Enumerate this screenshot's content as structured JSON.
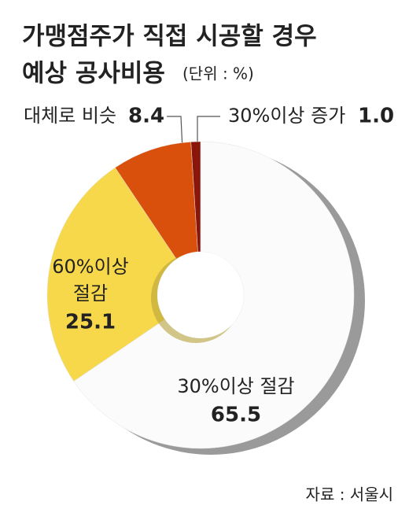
{
  "chart_data": {
    "type": "donut",
    "title": [
      "가맹점주가 직접 시공할 경우",
      "예상 공사비용"
    ],
    "subtitle": "(단위 : %)",
    "categories": [
      [
        "30%이상 절감"
      ],
      [
        "60%이상",
        "절감"
      ],
      [
        "대체로 비슷"
      ],
      [
        "30%이상 증가"
      ]
    ],
    "values": [
      65.5,
      25.1,
      8.4,
      1.0
    ],
    "value_labels": [
      "65.5",
      "25.1",
      "8.4",
      "1.0"
    ],
    "colors": [
      "#fbfbfb",
      "#f7d84b",
      "#d9500c",
      "#8a160b"
    ],
    "source": "자료 : 서울시"
  }
}
